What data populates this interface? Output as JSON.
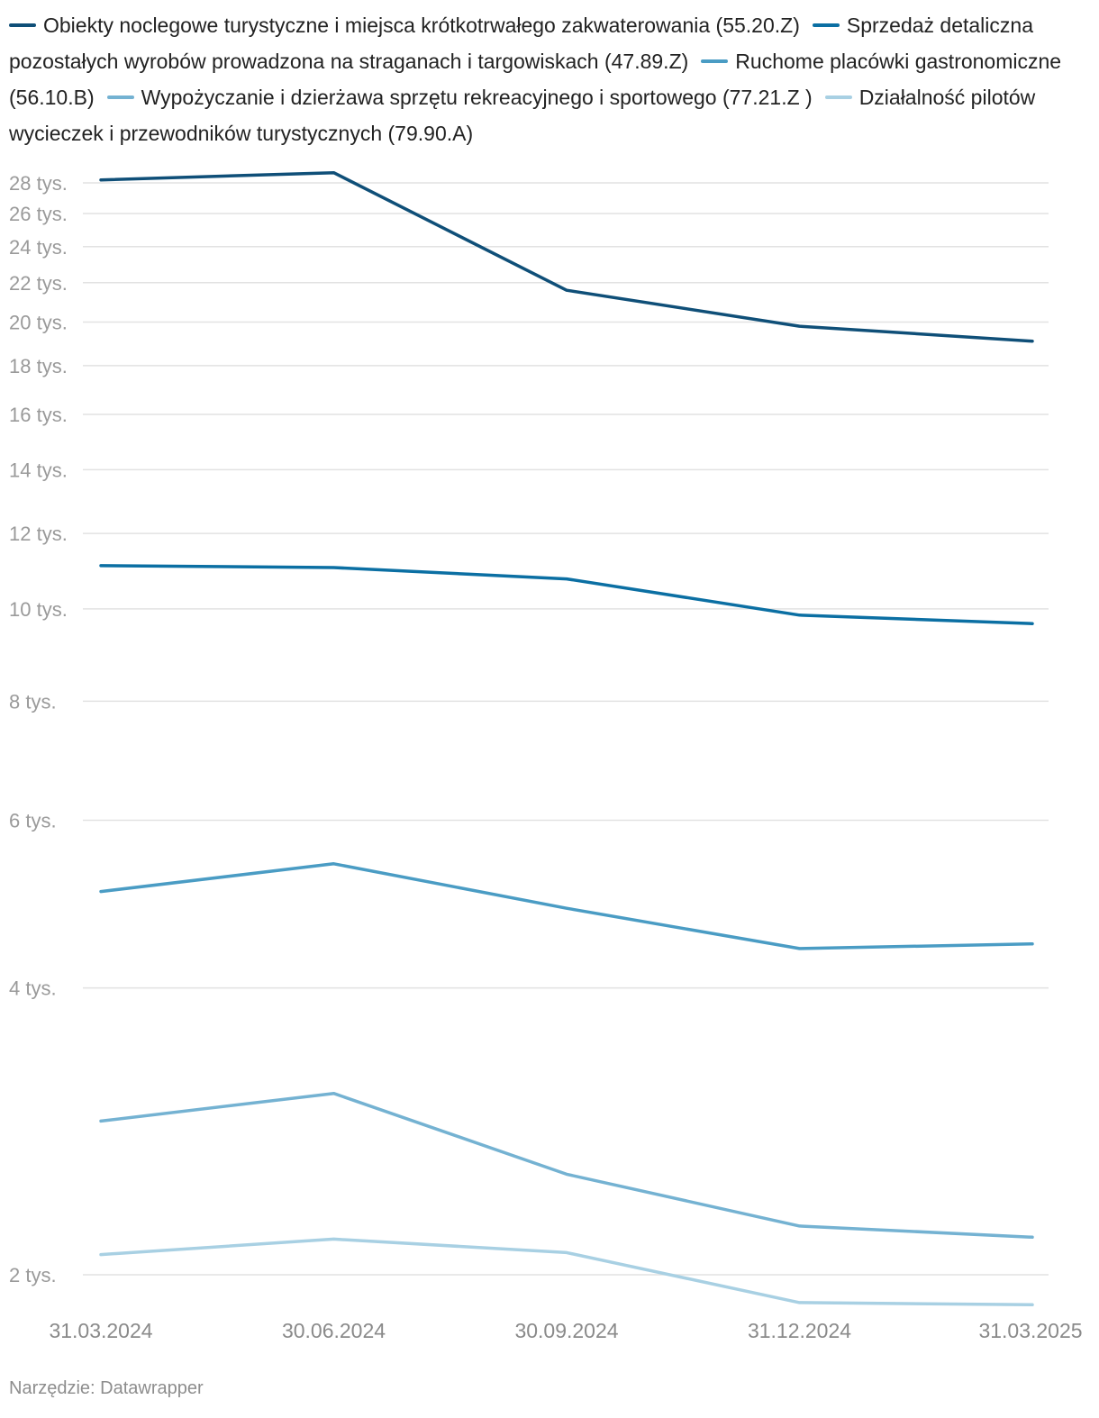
{
  "chart_data": {
    "type": "line",
    "categories": [
      "31.03.2024",
      "30.06.2024",
      "30.09.2024",
      "31.12.2024",
      "31.03.2025"
    ],
    "y_scale": "log",
    "yticks": [
      {
        "value": 2000,
        "label": "2 tys."
      },
      {
        "value": 4000,
        "label": "4 tys."
      },
      {
        "value": 6000,
        "label": "6 tys."
      },
      {
        "value": 8000,
        "label": "8 tys."
      },
      {
        "value": 10000,
        "label": "10 tys."
      },
      {
        "value": 12000,
        "label": "12 tys."
      },
      {
        "value": 14000,
        "label": "14 tys."
      },
      {
        "value": 16000,
        "label": "16 tys."
      },
      {
        "value": 18000,
        "label": "18 tys."
      },
      {
        "value": 20000,
        "label": "20 tys."
      },
      {
        "value": 22000,
        "label": "22 tys."
      },
      {
        "value": 24000,
        "label": "24 tys."
      },
      {
        "value": 26000,
        "label": "26 tys."
      },
      {
        "value": 28000,
        "label": "28 tys."
      }
    ],
    "ylim": [
      1850,
      29000
    ],
    "grid": true,
    "legend_position": "top",
    "series": [
      {
        "name": "Obiekty noclegowe turystyczne i miejsca krótkotrwałego zakwaterowania (55.20.Z)",
        "color": "#0f4f78",
        "values": [
          28200,
          28700,
          21600,
          19800,
          19100
        ]
      },
      {
        "name": "Sprzedaż detaliczna pozostałych wyrobów prowadzona na straganach i targowiskach (47.89.Z)",
        "color": "#0b6fa3",
        "values": [
          11100,
          11050,
          10750,
          9850,
          9650
        ]
      },
      {
        "name": "Ruchome placówki gastronomiczne (56.10.B)",
        "color": "#4a9cc4",
        "values": [
          5050,
          5400,
          4850,
          4400,
          4450
        ]
      },
      {
        "name": "Wypożyczanie i dzierżawa sprzętu rekreacyjnego i sportowego (77.21.Z )",
        "color": "#74b2d2",
        "values": [
          2900,
          3100,
          2550,
          2250,
          2190
        ]
      },
      {
        "name": "Działalność pilotów wycieczek i przewodników turystycznych (79.90.A)",
        "color": "#a8d0e3",
        "values": [
          2100,
          2180,
          2110,
          1870,
          1860
        ]
      }
    ]
  },
  "source": "Narzędzie: Datawrapper"
}
